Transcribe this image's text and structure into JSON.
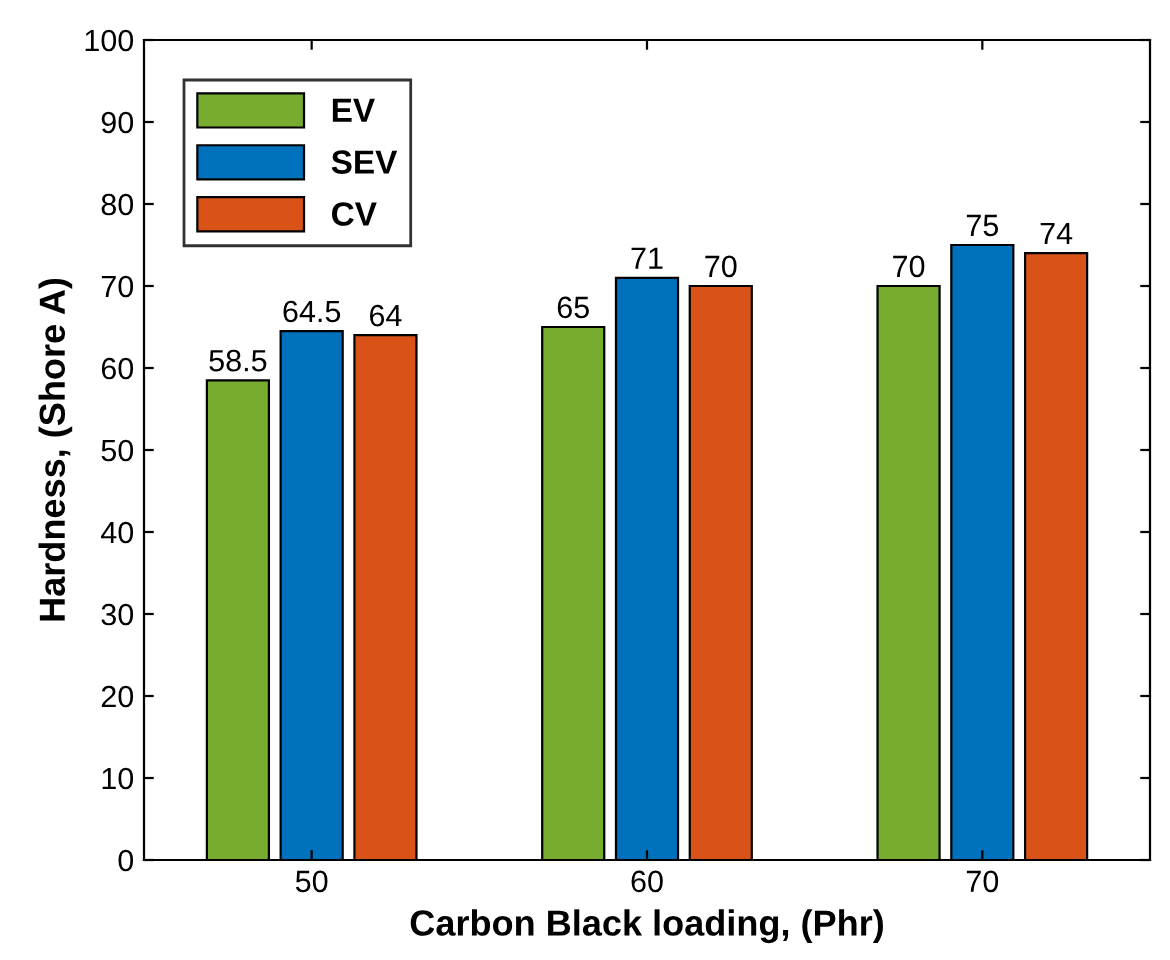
{
  "chart_data": {
    "type": "bar",
    "xlabel": "Carbon Black loading, (Phr)",
    "ylabel": "Hardness, (Shore A)",
    "categories": [
      "50",
      "60",
      "70"
    ],
    "series": [
      {
        "name": "EV",
        "color": "#77ac30",
        "values": [
          58.5,
          65,
          70
        ]
      },
      {
        "name": "SEV",
        "color": "#0072bd",
        "values": [
          64.5,
          71,
          75
        ]
      },
      {
        "name": "CV",
        "color": "#d95319",
        "values": [
          64,
          70,
          74
        ]
      }
    ],
    "ylim": [
      0,
      100
    ],
    "yticks": [
      0,
      10,
      20,
      30,
      40,
      50,
      60,
      70,
      80,
      90,
      100
    ],
    "data_labels": true,
    "legend": "top left",
    "grid": false
  }
}
